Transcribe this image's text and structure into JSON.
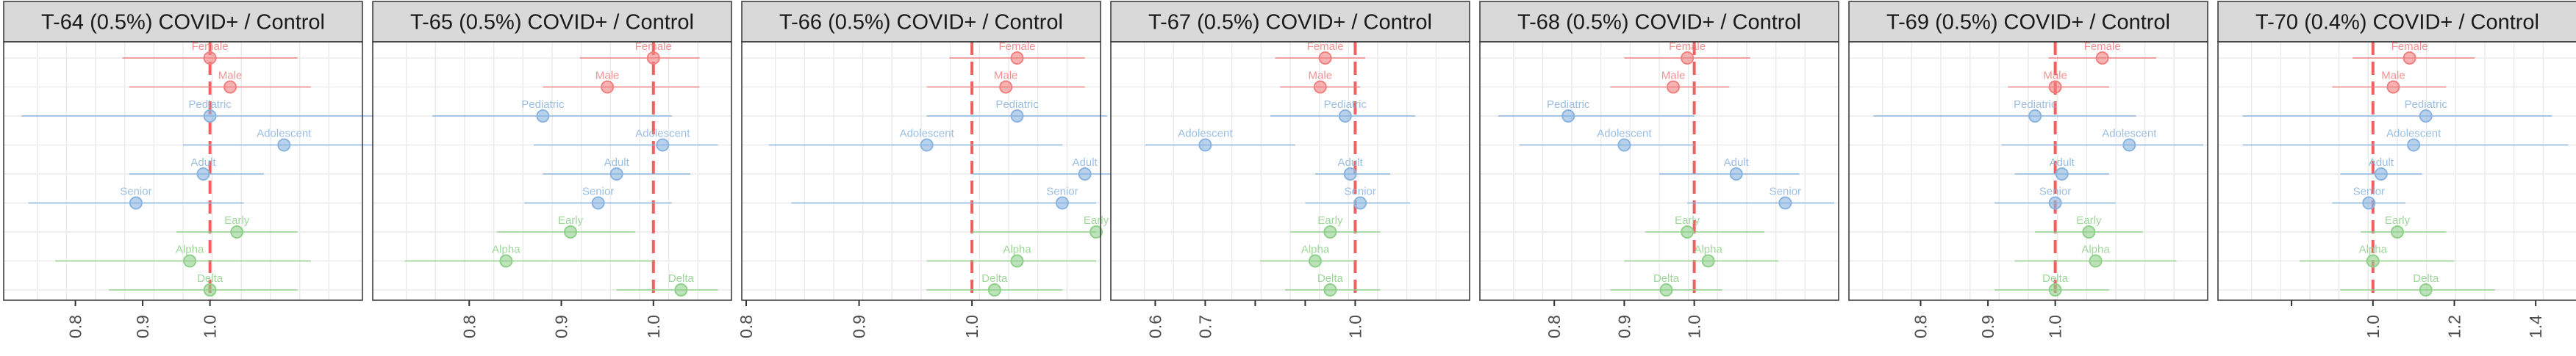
{
  "chart_data": [
    {
      "type": "forest",
      "title": "T-64 (0.5%) COVID+ / Control",
      "xlim": [
        0.7,
        1.22
      ],
      "ticks": [
        "0.8",
        "0.9",
        "1.0"
      ],
      "reference_line": 1.0,
      "rows": [
        {
          "label": "Female",
          "group": "sex",
          "estimate": 1.0,
          "ci": [
            0.87,
            1.13
          ]
        },
        {
          "label": "Male",
          "group": "sex",
          "estimate": 1.03,
          "ci": [
            0.88,
            1.15
          ]
        },
        {
          "label": "Pediatric",
          "group": "age",
          "estimate": 1.0,
          "ci": [
            0.72,
            1.28
          ]
        },
        {
          "label": "Adolescent",
          "group": "age",
          "estimate": 1.11,
          "ci": [
            0.96,
            1.34
          ]
        },
        {
          "label": "Adult",
          "group": "age",
          "estimate": 0.99,
          "ci": [
            0.88,
            1.08
          ]
        },
        {
          "label": "Senior",
          "group": "age",
          "estimate": 0.89,
          "ci": [
            0.73,
            1.05
          ]
        },
        {
          "label": "Early",
          "group": "variant",
          "estimate": 1.04,
          "ci": [
            0.95,
            1.13
          ]
        },
        {
          "label": "Alpha",
          "group": "variant",
          "estimate": 0.97,
          "ci": [
            0.77,
            1.15
          ]
        },
        {
          "label": "Delta",
          "group": "variant",
          "estimate": 1.0,
          "ci": [
            0.85,
            1.13
          ]
        }
      ]
    },
    {
      "type": "forest",
      "title": "T-65 (0.5%) COVID+ / Control",
      "xlim": [
        0.7,
        1.08
      ],
      "ticks": [
        "0.8",
        "0.9",
        "1.0"
      ],
      "reference_line": 1.0,
      "rows": [
        {
          "label": "Female",
          "group": "sex",
          "estimate": 1.0,
          "ci": [
            0.92,
            1.05
          ]
        },
        {
          "label": "Male",
          "group": "sex",
          "estimate": 0.95,
          "ci": [
            0.88,
            1.05
          ]
        },
        {
          "label": "Pediatric",
          "group": "age",
          "estimate": 0.88,
          "ci": [
            0.76,
            1.02
          ]
        },
        {
          "label": "Adolescent",
          "group": "age",
          "estimate": 1.01,
          "ci": [
            0.87,
            1.07
          ]
        },
        {
          "label": "Adult",
          "group": "age",
          "estimate": 0.96,
          "ci": [
            0.88,
            1.04
          ]
        },
        {
          "label": "Senior",
          "group": "age",
          "estimate": 0.94,
          "ci": [
            0.86,
            1.02
          ]
        },
        {
          "label": "Early",
          "group": "variant",
          "estimate": 0.91,
          "ci": [
            0.83,
            0.98
          ]
        },
        {
          "label": "Alpha",
          "group": "variant",
          "estimate": 0.84,
          "ci": [
            0.73,
            1.0
          ]
        },
        {
          "label": "Delta",
          "group": "variant",
          "estimate": 1.03,
          "ci": [
            0.96,
            1.07
          ]
        }
      ]
    },
    {
      "type": "forest",
      "title": "T-66 (0.5%) COVID+ / Control",
      "xlim": [
        0.8,
        1.11
      ],
      "ticks": [
        "0.8",
        "0.9",
        "1.0"
      ],
      "reference_line": 1.0,
      "rows": [
        {
          "label": "Female",
          "group": "sex",
          "estimate": 1.04,
          "ci": [
            0.98,
            1.1
          ]
        },
        {
          "label": "Male",
          "group": "sex",
          "estimate": 1.03,
          "ci": [
            0.96,
            1.1
          ]
        },
        {
          "label": "Pediatric",
          "group": "age",
          "estimate": 1.04,
          "ci": [
            0.96,
            1.12
          ]
        },
        {
          "label": "Adolescent",
          "group": "age",
          "estimate": 0.96,
          "ci": [
            0.82,
            1.08
          ]
        },
        {
          "label": "Adult",
          "group": "age",
          "estimate": 1.1,
          "ci": [
            1.0,
            1.15
          ]
        },
        {
          "label": "Senior",
          "group": "age",
          "estimate": 1.08,
          "ci": [
            0.84,
            1.11
          ]
        },
        {
          "label": "Early",
          "group": "variant",
          "estimate": 1.11,
          "ci": [
            1.0,
            1.11
          ]
        },
        {
          "label": "Alpha",
          "group": "variant",
          "estimate": 1.04,
          "ci": [
            0.96,
            1.11
          ]
        },
        {
          "label": "Delta",
          "group": "variant",
          "estimate": 1.02,
          "ci": [
            0.96,
            1.08
          ]
        }
      ]
    },
    {
      "type": "forest",
      "title": "T-67 (0.5%) COVID+ / Control",
      "xlim": [
        0.52,
        1.22
      ],
      "ticks": [
        "0.6",
        "0.7",
        "",
        "",
        "1.0"
      ],
      "reference_line": 1.0,
      "rows": [
        {
          "label": "Female",
          "group": "sex",
          "estimate": 0.94,
          "ci": [
            0.84,
            1.02
          ]
        },
        {
          "label": "Male",
          "group": "sex",
          "estimate": 0.93,
          "ci": [
            0.85,
            1.01
          ]
        },
        {
          "label": "Pediatric",
          "group": "age",
          "estimate": 0.98,
          "ci": [
            0.83,
            1.12
          ]
        },
        {
          "label": "Adolescent",
          "group": "age",
          "estimate": 0.7,
          "ci": [
            0.58,
            0.88
          ]
        },
        {
          "label": "Adult",
          "group": "age",
          "estimate": 0.99,
          "ci": [
            0.92,
            1.07
          ]
        },
        {
          "label": "Senior",
          "group": "age",
          "estimate": 1.01,
          "ci": [
            0.9,
            1.11
          ]
        },
        {
          "label": "Early",
          "group": "variant",
          "estimate": 0.95,
          "ci": [
            0.87,
            1.05
          ]
        },
        {
          "label": "Alpha",
          "group": "variant",
          "estimate": 0.92,
          "ci": [
            0.81,
            1.0
          ]
        },
        {
          "label": "Delta",
          "group": "variant",
          "estimate": 0.95,
          "ci": [
            0.86,
            1.05
          ]
        }
      ]
    },
    {
      "type": "forest",
      "title": "T-68 (0.5%) COVID+ / Control",
      "xlim": [
        0.7,
        1.2
      ],
      "ticks": [
        "0.8",
        "0.9",
        "1.0"
      ],
      "reference_line": 1.0,
      "rows": [
        {
          "label": "Female",
          "group": "sex",
          "estimate": 0.99,
          "ci": [
            0.9,
            1.08
          ]
        },
        {
          "label": "Male",
          "group": "sex",
          "estimate": 0.97,
          "ci": [
            0.88,
            1.05
          ]
        },
        {
          "label": "Pediatric",
          "group": "age",
          "estimate": 0.82,
          "ci": [
            0.72,
            1.0
          ]
        },
        {
          "label": "Adolescent",
          "group": "age",
          "estimate": 0.9,
          "ci": [
            0.75,
            1.0
          ]
        },
        {
          "label": "Adult",
          "group": "age",
          "estimate": 1.06,
          "ci": [
            0.95,
            1.15
          ]
        },
        {
          "label": "Senior",
          "group": "age",
          "estimate": 1.13,
          "ci": [
            0.99,
            1.2
          ]
        },
        {
          "label": "Early",
          "group": "variant",
          "estimate": 0.99,
          "ci": [
            0.93,
            1.1
          ]
        },
        {
          "label": "Alpha",
          "group": "variant",
          "estimate": 1.02,
          "ci": [
            0.9,
            1.12
          ]
        },
        {
          "label": "Delta",
          "group": "variant",
          "estimate": 0.96,
          "ci": [
            0.88,
            1.04
          ]
        }
      ]
    },
    {
      "type": "forest",
      "title": "T-69 (0.5%) COVID+ / Control",
      "xlim": [
        0.7,
        1.22
      ],
      "ticks": [
        "0.8",
        "0.9",
        "1.0"
      ],
      "reference_line": 1.0,
      "rows": [
        {
          "label": "Female",
          "group": "sex",
          "estimate": 1.07,
          "ci": [
            0.99,
            1.15
          ]
        },
        {
          "label": "Male",
          "group": "sex",
          "estimate": 1.0,
          "ci": [
            0.93,
            1.08
          ]
        },
        {
          "label": "Pediatric",
          "group": "age",
          "estimate": 0.97,
          "ci": [
            0.73,
            1.12
          ]
        },
        {
          "label": "Adolescent",
          "group": "age",
          "estimate": 1.11,
          "ci": [
            0.92,
            1.22
          ]
        },
        {
          "label": "Adult",
          "group": "age",
          "estimate": 1.01,
          "ci": [
            0.94,
            1.08
          ]
        },
        {
          "label": "Senior",
          "group": "age",
          "estimate": 1.0,
          "ci": [
            0.91,
            1.09
          ]
        },
        {
          "label": "Early",
          "group": "variant",
          "estimate": 1.05,
          "ci": [
            0.97,
            1.13
          ]
        },
        {
          "label": "Alpha",
          "group": "variant",
          "estimate": 1.06,
          "ci": [
            0.94,
            1.18
          ]
        },
        {
          "label": "Delta",
          "group": "variant",
          "estimate": 1.0,
          "ci": [
            0.91,
            1.08
          ]
        }
      ]
    },
    {
      "type": "forest",
      "title": "T-70 (0.4%) COVID+ / Control",
      "xlim": [
        0.63,
        1.49
      ],
      "ticks": [
        "",
        "1.0",
        "1.2",
        "1.4"
      ],
      "reference_line": 1.0,
      "rows": [
        {
          "label": "Female",
          "group": "sex",
          "estimate": 1.09,
          "ci": [
            0.95,
            1.25
          ]
        },
        {
          "label": "Male",
          "group": "sex",
          "estimate": 1.05,
          "ci": [
            0.9,
            1.18
          ]
        },
        {
          "label": "Pediatric",
          "group": "age",
          "estimate": 1.13,
          "ci": [
            0.68,
            1.44
          ]
        },
        {
          "label": "Adolescent",
          "group": "age",
          "estimate": 1.1,
          "ci": [
            0.68,
            1.48
          ]
        },
        {
          "label": "Adult",
          "group": "age",
          "estimate": 1.02,
          "ci": [
            0.92,
            1.12
          ]
        },
        {
          "label": "Senior",
          "group": "age",
          "estimate": 0.99,
          "ci": [
            0.9,
            1.08
          ]
        },
        {
          "label": "Early",
          "group": "variant",
          "estimate": 1.06,
          "ci": [
            0.97,
            1.18
          ]
        },
        {
          "label": "Alpha",
          "group": "variant",
          "estimate": 1.0,
          "ci": [
            0.82,
            1.2
          ]
        },
        {
          "label": "Delta",
          "group": "variant",
          "estimate": 1.13,
          "ci": [
            0.92,
            1.3
          ]
        }
      ]
    }
  ],
  "colors": {
    "sex": "#f08080",
    "age": "#8ab4e0",
    "variant": "#8fd18a",
    "reference": "#f06060",
    "strip": "#d9d9d9",
    "grid": "#ebebeb",
    "tick": "#333333"
  }
}
